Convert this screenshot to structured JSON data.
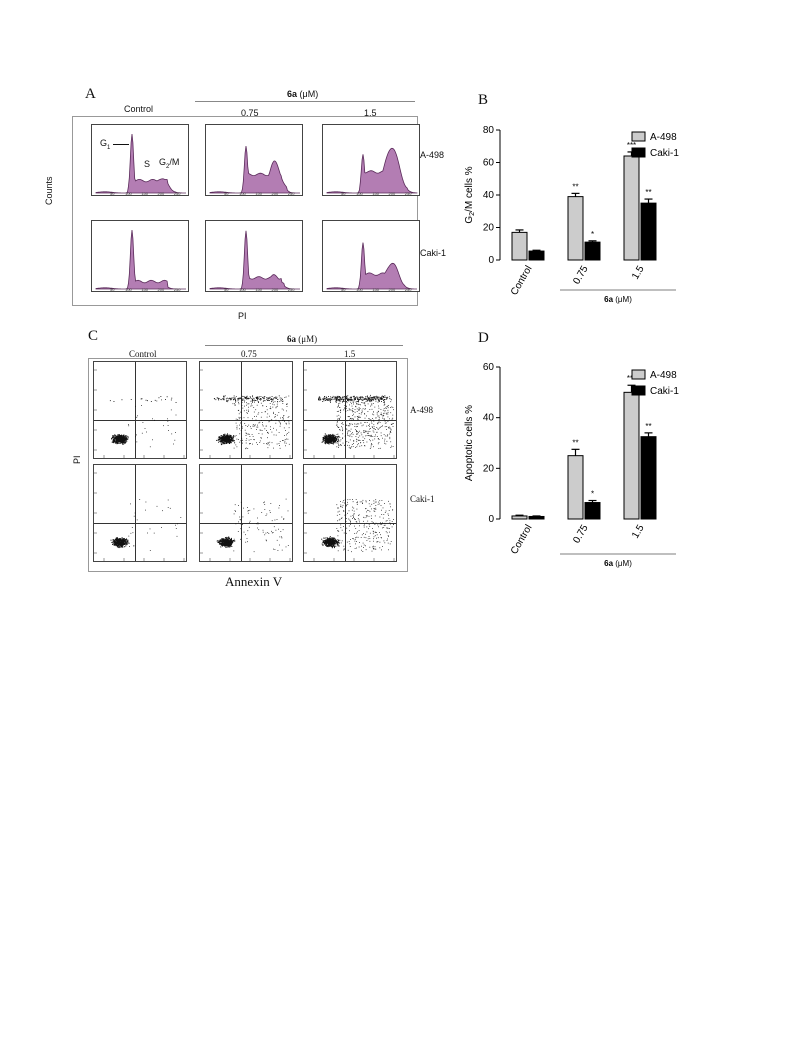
{
  "panelA": {
    "letter": "A",
    "header_compound": "6a",
    "header_unit": "(μM)",
    "col_labels": [
      "Control",
      "0.75",
      "1.5"
    ],
    "row_labels": [
      "A-498",
      "Caki-1"
    ],
    "phase_labels": [
      "G1",
      "S",
      "G2/M"
    ],
    "y_axis": "Counts",
    "x_axis": "PI",
    "x_ticks": [
      "50",
      "100",
      "150",
      "200",
      "250"
    ],
    "x_scale": "(x 1,000)",
    "fill_color": "#b37db3",
    "line_color": "#5a2a5a"
  },
  "panelC": {
    "letter": "C",
    "header_compound": "6a",
    "header_unit": "(μM)",
    "col_labels": [
      "Control",
      "0.75",
      "1.5"
    ],
    "row_labels": [
      "A-498",
      "Caki-1"
    ],
    "y_axis": "PI",
    "x_axis": "Annexin V"
  },
  "chart_data": [
    {
      "type": "bar",
      "panel": "B",
      "ylabel": "G2/M cells %",
      "ylim": [
        0,
        80
      ],
      "yticks": [
        0,
        20,
        40,
        60,
        80
      ],
      "categories": [
        "Control",
        "0.75",
        "1.5"
      ],
      "group_label_compound": "6a",
      "group_label_unit": "(μM)",
      "legend_position": "top-right",
      "series": [
        {
          "name": "A-498",
          "color": "#cccccc",
          "values": [
            17,
            39,
            64
          ],
          "errors": [
            1.5,
            2,
            2.5
          ],
          "sig": [
            "",
            "**",
            "***"
          ]
        },
        {
          "name": "Caki-1",
          "color": "#000000",
          "values": [
            5.5,
            11,
            35
          ],
          "errors": [
            0.5,
            0.8,
            2.5
          ],
          "sig": [
            "",
            "*",
            "**"
          ]
        }
      ]
    },
    {
      "type": "bar",
      "panel": "D",
      "ylabel": "Apoptotic cells %",
      "ylim": [
        0,
        60
      ],
      "yticks": [
        0,
        20,
        40,
        60
      ],
      "categories": [
        "Control",
        "0.75",
        "1.5"
      ],
      "group_label_compound": "6a",
      "group_label_unit": "(μM)",
      "legend_position": "top-right",
      "series": [
        {
          "name": "A-498",
          "color": "#cccccc",
          "values": [
            1.2,
            25,
            50
          ],
          "errors": [
            0.3,
            2.5,
            2.8
          ],
          "sig": [
            "",
            "**",
            "***"
          ]
        },
        {
          "name": "Caki-1",
          "color": "#000000",
          "values": [
            1,
            6.5,
            32.5
          ],
          "errors": [
            0.2,
            0.8,
            1.5
          ],
          "sig": [
            "",
            "*",
            "**"
          ]
        }
      ]
    }
  ]
}
